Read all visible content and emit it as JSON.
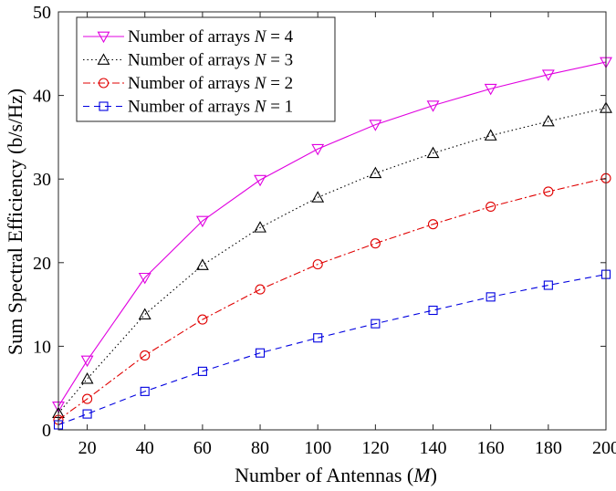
{
  "chart_data": {
    "type": "line",
    "xlabel": "Number of Antennas (M)",
    "xlabel_parts": {
      "pre": "Number of Antennas (",
      "var": "M",
      "post": ")"
    },
    "ylabel": "Sum Spectral Efficiency (b/s/Hz)",
    "xlim": [
      10,
      200
    ],
    "ylim": [
      0,
      50
    ],
    "xticks": [
      20,
      40,
      60,
      80,
      100,
      120,
      140,
      160,
      180,
      200
    ],
    "yticks": [
      0,
      10,
      20,
      30,
      40,
      50
    ],
    "grid": false,
    "legend_position": "top-left",
    "x": [
      10,
      20,
      40,
      60,
      80,
      100,
      120,
      140,
      160,
      180,
      200
    ],
    "series": [
      {
        "name": "Number of arrays N = 4",
        "legend_pre": "Number of arrays ",
        "legend_var": "N",
        "legend_post": " = 4",
        "color": "#e000e0",
        "dash": "",
        "marker": "triangle-down",
        "values": [
          2.8,
          8.3,
          18.2,
          25.0,
          29.9,
          33.6,
          36.5,
          38.8,
          40.8,
          42.5,
          44.0
        ]
      },
      {
        "name": "Number of arrays N = 3",
        "legend_pre": "Number of arrays ",
        "legend_var": "N",
        "legend_post": " = 3",
        "color": "#000000",
        "dash": "1.5,3",
        "marker": "triangle-up",
        "values": [
          2.0,
          6.1,
          13.8,
          19.7,
          24.2,
          27.8,
          30.7,
          33.1,
          35.2,
          36.9,
          38.5
        ]
      },
      {
        "name": "Number of arrays N = 2",
        "legend_pre": "Number of arrays ",
        "legend_var": "N",
        "legend_post": " = 2",
        "color": "#e00000",
        "dash": "8,3,2,3",
        "marker": "circle",
        "values": [
          1.2,
          3.7,
          8.9,
          13.2,
          16.8,
          19.8,
          22.3,
          24.6,
          26.7,
          28.5,
          30.1
        ]
      },
      {
        "name": "Number of arrays N = 1",
        "legend_pre": "Number of arrays ",
        "legend_var": "N",
        "legend_post": " = 1",
        "color": "#0000e0",
        "dash": "7,5",
        "marker": "square",
        "values": [
          0.6,
          1.9,
          4.6,
          7.0,
          9.2,
          11.0,
          12.7,
          14.3,
          15.9,
          17.3,
          18.6
        ]
      }
    ]
  }
}
